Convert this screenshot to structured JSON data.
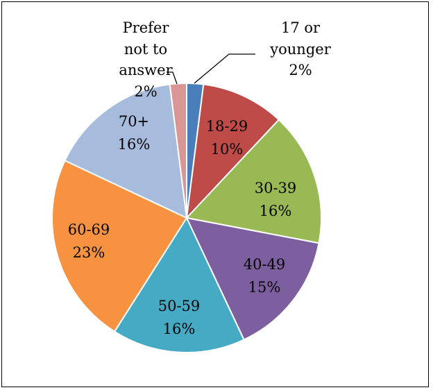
{
  "chart_data": {
    "type": "pie",
    "title": "",
    "slices": [
      {
        "label": "17 or younger",
        "value": 2,
        "value_text": "2%",
        "color": "#4a7ebb",
        "label_lines": [
          "17 or",
          "younger",
          "2%"
        ],
        "label_outside": true
      },
      {
        "label": "18-29",
        "value": 10,
        "value_text": "10%",
        "color": "#be4b48",
        "label_lines": [
          "18-29",
          "10%"
        ],
        "label_outside": false
      },
      {
        "label": "30-39",
        "value": 16,
        "value_text": "16%",
        "color": "#98b954",
        "label_lines": [
          "30-39",
          "16%"
        ],
        "label_outside": false
      },
      {
        "label": "40-49",
        "value": 15,
        "value_text": "15%",
        "color": "#7d5fa0",
        "label_lines": [
          "40-49",
          "15%"
        ],
        "label_outside": false
      },
      {
        "label": "50-59",
        "value": 16,
        "value_text": "16%",
        "color": "#46aac5",
        "label_lines": [
          "50-59",
          "16%"
        ],
        "label_outside": false
      },
      {
        "label": "60-69",
        "value": 23,
        "value_text": "23%",
        "color": "#f69240",
        "label_lines": [
          "60-69",
          "23%"
        ],
        "label_outside": false
      },
      {
        "label": "70+",
        "value": 16,
        "value_text": "16%",
        "color": "#a7bbdd",
        "label_lines": [
          "70+",
          "16%"
        ],
        "label_outside": false
      },
      {
        "label": "Prefer not to answer",
        "value": 2,
        "value_text": "2%",
        "color": "#d99694",
        "label_lines": [
          "Prefer",
          "not to",
          "answer",
          "2%"
        ],
        "label_outside": true
      }
    ],
    "start_angle_deg": 0,
    "direction": "clockwise",
    "legend": "none",
    "grid": false
  }
}
